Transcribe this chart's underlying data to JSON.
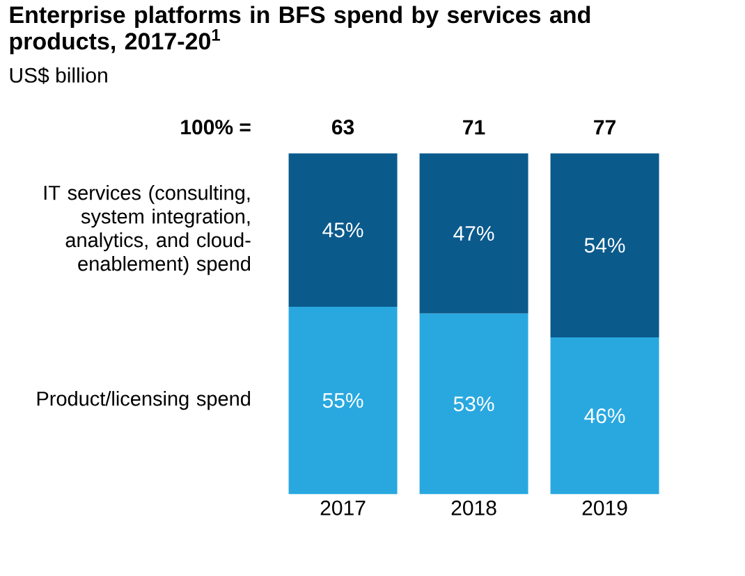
{
  "chart_data": {
    "type": "bar",
    "stacked": true,
    "title": "Enterprise platforms in BFS spend by services and products, 2017-20$^{1}$",
    "subtitle": "US$ billion",
    "categories": [
      "2017",
      "2018",
      "2019"
    ],
    "series": [
      {
        "name": "Product/licensing spend",
        "color": "#29a8e0",
        "values": [
          55,
          53,
          46
        ],
        "value_labels": [
          "55%",
          "53%",
          "46%"
        ]
      },
      {
        "name": "IT services (consulting, system integration, analytics, and cloud-enablement) spend",
        "color": "#0b5a8c",
        "values": [
          45,
          47,
          54
        ],
        "value_labels": [
          "45%",
          "47%",
          "54%"
        ]
      }
    ],
    "annotations": [
      "100% =",
      "63",
      "71",
      "77"
    ]
  }
}
